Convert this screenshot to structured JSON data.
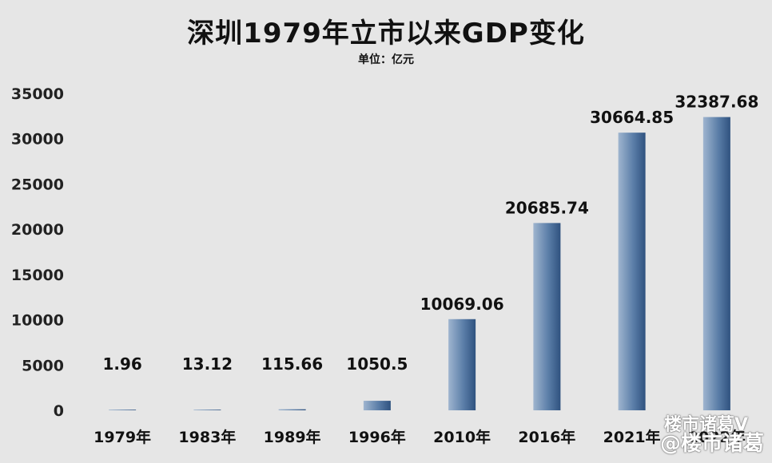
{
  "chart_data": {
    "type": "bar",
    "title": "深圳1979年立市以来GDP变化",
    "subtitle": "单位：亿元",
    "categories": [
      "1979年",
      "1983年",
      "1989年",
      "1996年",
      "2010年",
      "2016年",
      "2021年",
      "2022年"
    ],
    "values": [
      1.96,
      13.12,
      115.66,
      1050.5,
      10069.06,
      20685.74,
      30664.85,
      32387.68
    ],
    "data_labels": [
      "1.96",
      "13.12",
      "115.66",
      "1050.5",
      "10069.06",
      "20685.74",
      "30664.85",
      "32387.68"
    ],
    "yticks": [
      "0",
      "5000",
      "10000",
      "15000",
      "20000",
      "25000",
      "30000",
      "35000"
    ],
    "ylim": [
      0,
      35000
    ],
    "grid": false,
    "bar_color": "#4a6f9c"
  },
  "watermark": {
    "line1": "楼市诸葛V",
    "line2": "@楼市诸葛"
  }
}
